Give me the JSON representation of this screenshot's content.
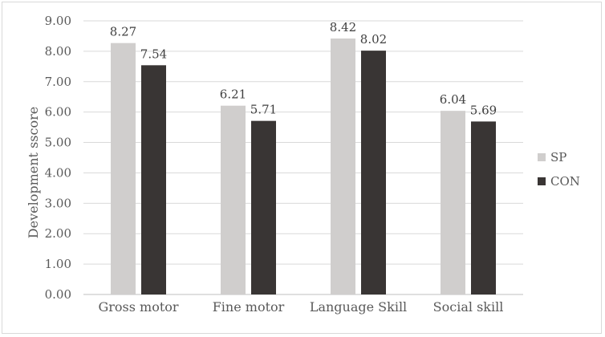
{
  "chart_data": {
    "type": "bar",
    "ylabel": "Development sscore",
    "xlabel": "",
    "ylim": [
      0,
      9
    ],
    "y_ticks": [
      "0.00",
      "1.00",
      "2.00",
      "3.00",
      "4.00",
      "5.00",
      "6.00",
      "7.00",
      "8.00",
      "9.00"
    ],
    "categories": [
      "Gross motor",
      "Fine motor",
      "Language Skill",
      "Social skill"
    ],
    "series": [
      {
        "name": "SP",
        "color": "#d0cecd",
        "values": [
          8.27,
          6.21,
          8.42,
          6.04
        ]
      },
      {
        "name": "CON",
        "color": "#393534",
        "values": [
          7.54,
          5.71,
          8.02,
          5.69
        ]
      }
    ],
    "grid": true,
    "legend_position": "right"
  }
}
